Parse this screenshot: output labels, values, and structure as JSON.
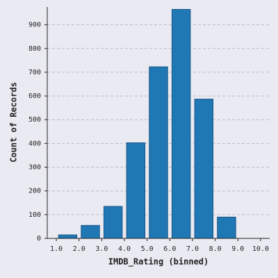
{
  "chart_data": {
    "type": "histogram",
    "x_label": "IMDB_Rating (binned)",
    "y_label": "Count of Records",
    "bins": [
      1,
      2,
      3,
      4,
      5,
      6,
      7,
      8,
      9
    ],
    "values": [
      15,
      55,
      135,
      403,
      723,
      965,
      587,
      90
    ],
    "color": "#1f77b4",
    "xlim": [
      0.6,
      10.4
    ],
    "xticks": [
      {
        "value": 1,
        "label": "1.0"
      },
      {
        "value": 2,
        "label": "2.0"
      },
      {
        "value": 3,
        "label": "3.0"
      },
      {
        "value": 4,
        "label": "4.0"
      },
      {
        "value": 5,
        "label": "5.0"
      },
      {
        "value": 6,
        "label": "6.0"
      },
      {
        "value": 7,
        "label": "7.0"
      },
      {
        "value": 8,
        "label": "8.0"
      },
      {
        "value": 9,
        "label": "9.0"
      },
      {
        "value": 10,
        "label": "10.0"
      }
    ],
    "ylim": [
      0,
      975
    ],
    "yticks": [
      0,
      100,
      200,
      300,
      400,
      500,
      600,
      700,
      800,
      900
    ],
    "grid": true
  }
}
